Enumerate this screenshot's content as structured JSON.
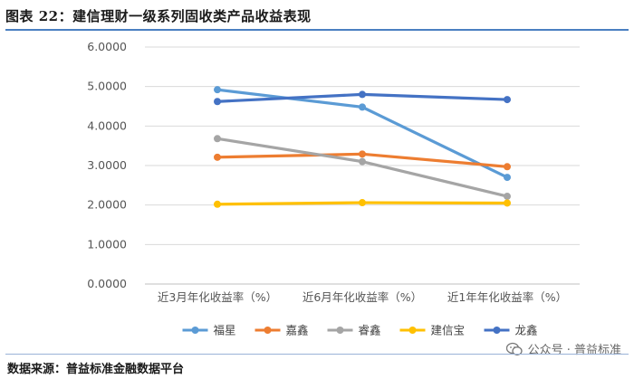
{
  "header": {
    "title": "图表 22：建信理财一级系列固收类产品收益表现"
  },
  "footer": {
    "source": "数据来源：普益标准金融数据平台",
    "watermark": "公众号 · 普益标准",
    "watermark_icon": "wechat-icon"
  },
  "colors": {
    "福星": "#5b9bd5",
    "嘉鑫": "#ed7d31",
    "睿鑫": "#a5a5a5",
    "建信宝": "#ffc000",
    "龙鑫": "#4472c4"
  },
  "chart_data": {
    "type": "line",
    "title": "",
    "xlabel": "",
    "ylabel": "",
    "categories": [
      "近3月年化收益率（%）",
      "近6月年化收益率（%）",
      "近1年年化收益率（%）"
    ],
    "y_ticks": [
      "0.0000",
      "1.0000",
      "2.0000",
      "3.0000",
      "4.0000",
      "5.0000",
      "6.0000"
    ],
    "ylim": [
      0,
      6
    ],
    "grid": "horizontal",
    "legend_position": "bottom",
    "series": [
      {
        "name": "福星",
        "values": [
          4.92,
          4.48,
          2.7
        ]
      },
      {
        "name": "嘉鑫",
        "values": [
          3.21,
          3.29,
          2.97
        ]
      },
      {
        "name": "睿鑫",
        "values": [
          3.68,
          3.1,
          2.22
        ]
      },
      {
        "name": "建信宝",
        "values": [
          2.02,
          2.06,
          2.05
        ]
      },
      {
        "name": "龙鑫",
        "values": [
          4.62,
          4.8,
          4.67
        ]
      }
    ]
  }
}
